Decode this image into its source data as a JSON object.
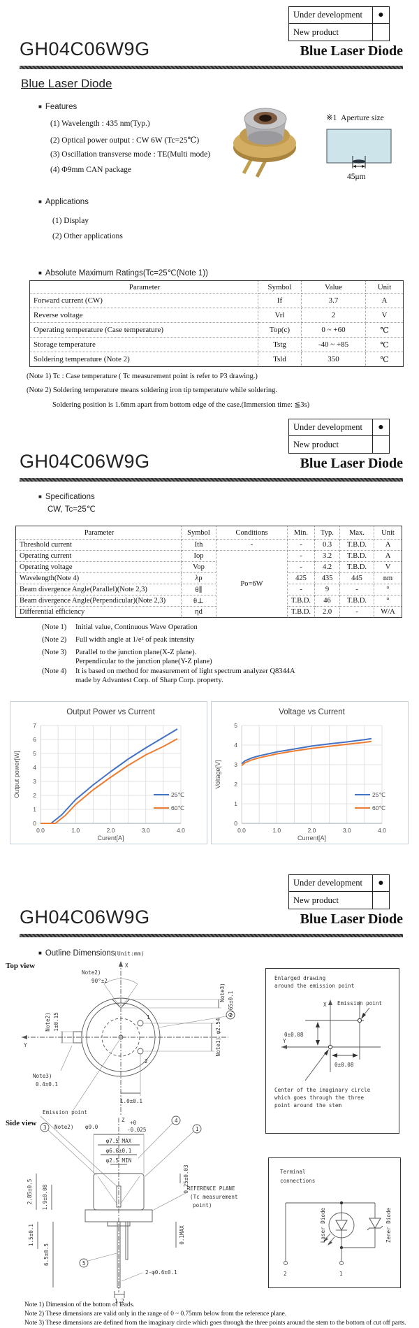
{
  "ui": {
    "bullet": "■"
  },
  "status_box": {
    "row1": "Under development",
    "marker1": "●",
    "row2": "New product",
    "marker2": ""
  },
  "header": {
    "model": "GH04C06W9G",
    "product": "Blue Laser Diode"
  },
  "page1": {
    "subtitle": "Blue Laser Diode",
    "features": {
      "heading": "Features",
      "items": [
        "(1) Wavelength : 435 nm(Typ.)",
        "(2) Optical power output :  CW 6W (Tc=25℃)",
        "(3) Oscillation transverse mode : TE(Multi mode)",
        "(4) Φ9mm CAN package"
      ]
    },
    "aperture": {
      "ref": "※1",
      "label": "Aperture size",
      "size": "45μm"
    },
    "applications": {
      "heading": "Applications",
      "items": [
        "(1)  Display",
        "(2)  Other applications"
      ]
    },
    "abs_max": {
      "heading": "Absolute Maximum Ratings(Tc=25℃(Note 1))",
      "headers": [
        "Parameter",
        "Symbol",
        "Value",
        "Unit"
      ],
      "body_rows": [
        [
          "Forward current  (CW)",
          "If",
          "3.7",
          "A"
        ],
        [
          "Reverse voltage",
          "Vrl",
          "2",
          "V"
        ],
        [
          "Operating temperature (Case temperature)",
          "Top(c)",
          "0 ~ +60",
          "℃"
        ],
        [
          "Storage temperature",
          "Tstg",
          "-40 ~ +85",
          "℃"
        ],
        [
          "Soldering temperature (Note 2)",
          "Tsld",
          "350",
          "℃"
        ]
      ],
      "notes": {
        "n1": "(Note 1) Tc : Case temperature ( Tc measurement point is refer to P3 drawing.)",
        "n2": "(Note 2) Soldering temperature means soldering iron tip temperature while soldering.",
        "n3": "Soldering position is 1.6mm apart from bottom edge of the case.(Immersion time: ≦3s)"
      }
    }
  },
  "page2": {
    "spec": {
      "heading": "Specifications",
      "condition": "CW, Tc=25℃",
      "headers": [
        "Parameter",
        "Symbol",
        "Conditions",
        "Min.",
        "Typ.",
        "Max.",
        "Unit"
      ],
      "body_rows": [
        [
          "Threshold current",
          "Ith",
          "-",
          "-",
          "0.3",
          "T.B.D.",
          "A"
        ],
        [
          "Operating current",
          "Iop",
          {
            "text": "Po=6W",
            "rowspan": 6
          },
          "-",
          "3.2",
          "T.B.D.",
          "A"
        ],
        [
          "Operating voltage",
          "Vop",
          "-",
          "4.2",
          "T.B.D.",
          "V"
        ],
        [
          "Wavelength(Note 4)",
          "λp",
          "425",
          "435",
          "445",
          "nm"
        ],
        [
          "Beam divergence Angle(Parallel)(Note 2,3)",
          "θ∥",
          "-",
          "9",
          "-",
          "°"
        ],
        [
          "Beam divergence Angle(Perpendicular)(Note 2,3)",
          "θ⊥",
          "T.B.D.",
          "46",
          "T.B.D.",
          "°"
        ],
        [
          "Differential efficiency",
          "ηd",
          "T.B.D.",
          "2.0",
          "-",
          "W/A"
        ]
      ],
      "notes": {
        "n1_label": "(Note 1)",
        "n1": "Initial value, Continuous Wave Operation",
        "n2_label": "(Note 2)",
        "n2": "Full width angle at 1/e² of peak intensity",
        "n3_label": "(Note 3)",
        "n3a": "Parallel to the junction plane(X-Z plane).",
        "n3b": "Perpendicular to the junction plane(Y-Z plane)",
        "n4_label": "(Note 4)",
        "n4a": "It is based on method for measurement of light spectrum analyzer Q8344A",
        "n4b": "made by Advantest Corp. of Sharp Corp. property."
      }
    }
  },
  "chart_data": [
    {
      "type": "line",
      "title": "Output Power vs Current",
      "xlabel": "Curent[A]",
      "ylabel": "Output power[W]",
      "xlim": [
        0,
        4
      ],
      "ylim": [
        0,
        7
      ],
      "xticks": [
        "0.0",
        "1.0",
        "2.0",
        "3.0",
        "4.0"
      ],
      "yticks": [
        0,
        1,
        2,
        3,
        4,
        5,
        6,
        7
      ],
      "grid": true,
      "legend_position": "inside-right",
      "series": [
        {
          "name": "25℃",
          "color": "#4472C4",
          "x": [
            0,
            0.3,
            0.6,
            1.0,
            1.5,
            2.0,
            2.5,
            3.0,
            3.5,
            3.9
          ],
          "y": [
            0,
            0,
            0.6,
            1.7,
            2.75,
            3.7,
            4.6,
            5.4,
            6.15,
            6.75
          ]
        },
        {
          "name": "60℃",
          "color": "#ED7D31",
          "x": [
            0,
            0.42,
            0.7,
            1.0,
            1.5,
            2.0,
            2.5,
            3.0,
            3.5,
            3.9
          ],
          "y": [
            0,
            0,
            0.55,
            1.35,
            2.4,
            3.3,
            4.15,
            4.9,
            5.5,
            6.05
          ]
        }
      ]
    },
    {
      "type": "line",
      "title": "Voltage vs Current",
      "xlabel": "Current[A]",
      "ylabel": "Voltage[V]",
      "xlim": [
        0,
        4
      ],
      "ylim": [
        0,
        5
      ],
      "xticks": [
        "0.0",
        "1.0",
        "2.0",
        "3.0",
        "4.0"
      ],
      "yticks": [
        0,
        1,
        2,
        3,
        4,
        5
      ],
      "grid": true,
      "legend_position": "inside-right",
      "series": [
        {
          "name": "25℃",
          "color": "#4472C4",
          "x": [
            0,
            0.1,
            0.3,
            0.5,
            1.0,
            1.5,
            2.0,
            2.5,
            3.0,
            3.5,
            3.7
          ],
          "y": [
            3.05,
            3.2,
            3.35,
            3.45,
            3.65,
            3.8,
            3.95,
            4.06,
            4.16,
            4.28,
            4.33
          ]
        },
        {
          "name": "60℃",
          "color": "#ED7D31",
          "x": [
            0,
            0.1,
            0.3,
            0.5,
            1.0,
            1.5,
            2.0,
            2.5,
            3.0,
            3.5,
            3.7
          ],
          "y": [
            2.95,
            3.1,
            3.25,
            3.35,
            3.55,
            3.7,
            3.83,
            3.94,
            4.04,
            4.14,
            4.19
          ]
        }
      ]
    }
  ],
  "page3": {
    "heading": "Outline Dimensions",
    "unit": "(Unit:mm)",
    "top_view": {
      "label": "Top view",
      "note2_top": "Note2)",
      "angle": "90°±2",
      "axis_x": "X",
      "axis_y": "Y",
      "note3_right": "Note3)",
      "dim_notch": "0.65±0.1",
      "note2_left": "Note2)",
      "dim_tab_h": "1±0.15",
      "note3_left": "Note3)",
      "dim_tab_w": "0.4±0.1",
      "dim_pin": "1.0±0.1",
      "dim_pincircle": "Note1) φ2.54",
      "pin1": "1",
      "pin2": "2",
      "callout2": "2",
      "emission": "Emission point"
    },
    "side_view": {
      "label": "Side view",
      "axis_z": "Z",
      "note2": "Note2)",
      "dia9": "φ9.0",
      "tol_p": "+0",
      "tol_m": "-0.025",
      "dia75": "φ7.5 MAX",
      "dia66": "φ6.6±0.1",
      "dia25": "φ2.5 MIN",
      "dim_win": "0.25±0.03",
      "dim_cap": "2.85±0.5",
      "dim_19": "1.9±0.08",
      "dim_15": "1.5±0.1",
      "dim_65": "6.5±0.5",
      "dim_01": "0.1MAX",
      "dim_lead": "2-φ0.6±0.1",
      "dim_12": "1.2",
      "ref1": "REFERENCE PLANE",
      "ref2": "(Tc measurement",
      "ref3": "point)",
      "callout1": "1",
      "callout3": "3",
      "callout4": "4",
      "callout5": "5"
    },
    "enlarged": {
      "title1": "Enlarged drawing",
      "title2": "around the emission point",
      "emission": "Emission point",
      "axis_x": "X",
      "axis_y": "Y",
      "dim_v": "0±0.08",
      "dim_h": "0±0.08",
      "cap1": "Center of the imaginary circle",
      "cap2": "which goes through the three",
      "cap3": "point around the stem"
    },
    "terminal": {
      "title1": "Terminal",
      "title2": "connections",
      "laser": "Laser Diode",
      "zener": "Zener Diode",
      "pin1": "1",
      "pin2": "2"
    },
    "notes": [
      "Note 1) Dimension of the bottom of leads.",
      "Note 2) These dimensions are valid only in the range of 0 ~ 0.75mm below from the reference plane.",
      "Note 3) These dimensions are defined from the imaginary circle which goes through the three points around the stem to the bottom of cut off parts."
    ]
  }
}
